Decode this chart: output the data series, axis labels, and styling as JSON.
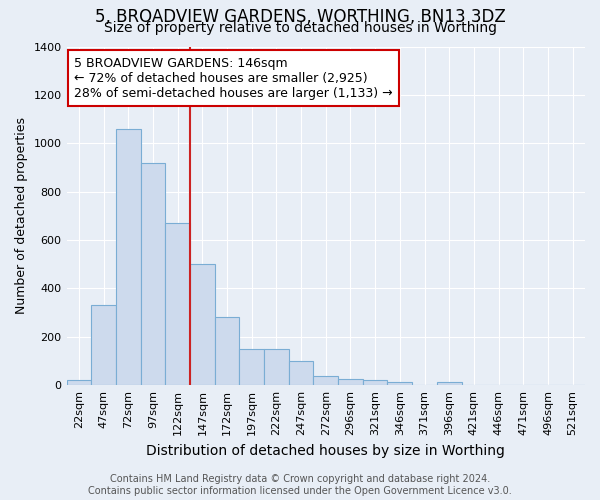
{
  "title": "5, BROADVIEW GARDENS, WORTHING, BN13 3DZ",
  "subtitle": "Size of property relative to detached houses in Worthing",
  "xlabel": "Distribution of detached houses by size in Worthing",
  "ylabel": "Number of detached properties",
  "categories": [
    "22sqm",
    "47sqm",
    "72sqm",
    "97sqm",
    "122sqm",
    "147sqm",
    "172sqm",
    "197sqm",
    "222sqm",
    "247sqm",
    "272sqm",
    "296sqm",
    "321sqm",
    "346sqm",
    "371sqm",
    "396sqm",
    "421sqm",
    "446sqm",
    "471sqm",
    "496sqm",
    "521sqm"
  ],
  "values": [
    20,
    330,
    1060,
    920,
    670,
    500,
    280,
    150,
    150,
    100,
    40,
    25,
    20,
    15,
    0,
    12,
    0,
    0,
    0,
    0,
    0
  ],
  "bar_color": "#cddaed",
  "bar_edge_color": "#7aadd4",
  "marker_index": 5,
  "marker_color": "#cc2222",
  "annotation_text": "5 BROADVIEW GARDENS: 146sqm\n← 72% of detached houses are smaller (2,925)\n28% of semi-detached houses are larger (1,133) →",
  "annotation_box_color": "#ffffff",
  "annotation_box_edge_color": "#cc0000",
  "ylim": [
    0,
    1400
  ],
  "yticks": [
    0,
    200,
    400,
    600,
    800,
    1000,
    1200,
    1400
  ],
  "background_color": "#e8eef6",
  "grid_color": "#ffffff",
  "footer_text": "Contains HM Land Registry data © Crown copyright and database right 2024.\nContains public sector information licensed under the Open Government Licence v3.0.",
  "title_fontsize": 12,
  "subtitle_fontsize": 10,
  "xlabel_fontsize": 10,
  "ylabel_fontsize": 9,
  "tick_fontsize": 8,
  "annotation_fontsize": 9,
  "footer_fontsize": 7
}
